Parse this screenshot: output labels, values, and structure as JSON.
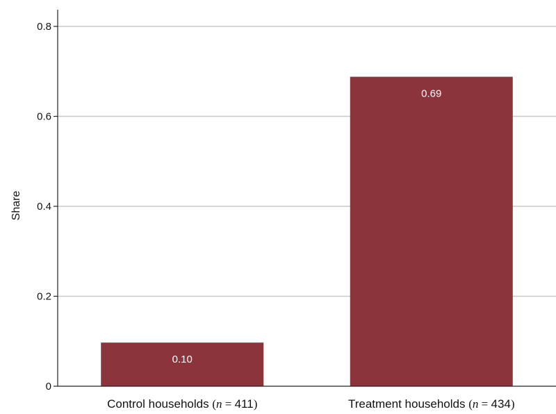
{
  "chart_data": {
    "type": "bar",
    "title": "",
    "xlabel": "",
    "ylabel": "Share",
    "ylim": [
      0,
      0.83
    ],
    "yticks": [
      0,
      0.2,
      0.4,
      0.6,
      0.8
    ],
    "ytick_labels": [
      "0",
      "0.2",
      "0.4",
      "0.6",
      "0.8"
    ],
    "grid": true,
    "bar_color": "#8b343b",
    "categories": [
      {
        "prefix": "Control households",
        "n_var": "n",
        "n_value": "411"
      },
      {
        "prefix": "Treatment households",
        "n_var": "n",
        "n_value": "434"
      }
    ],
    "values": [
      0.097,
      0.688
    ],
    "data_labels": [
      "0.10",
      "0.69"
    ]
  }
}
